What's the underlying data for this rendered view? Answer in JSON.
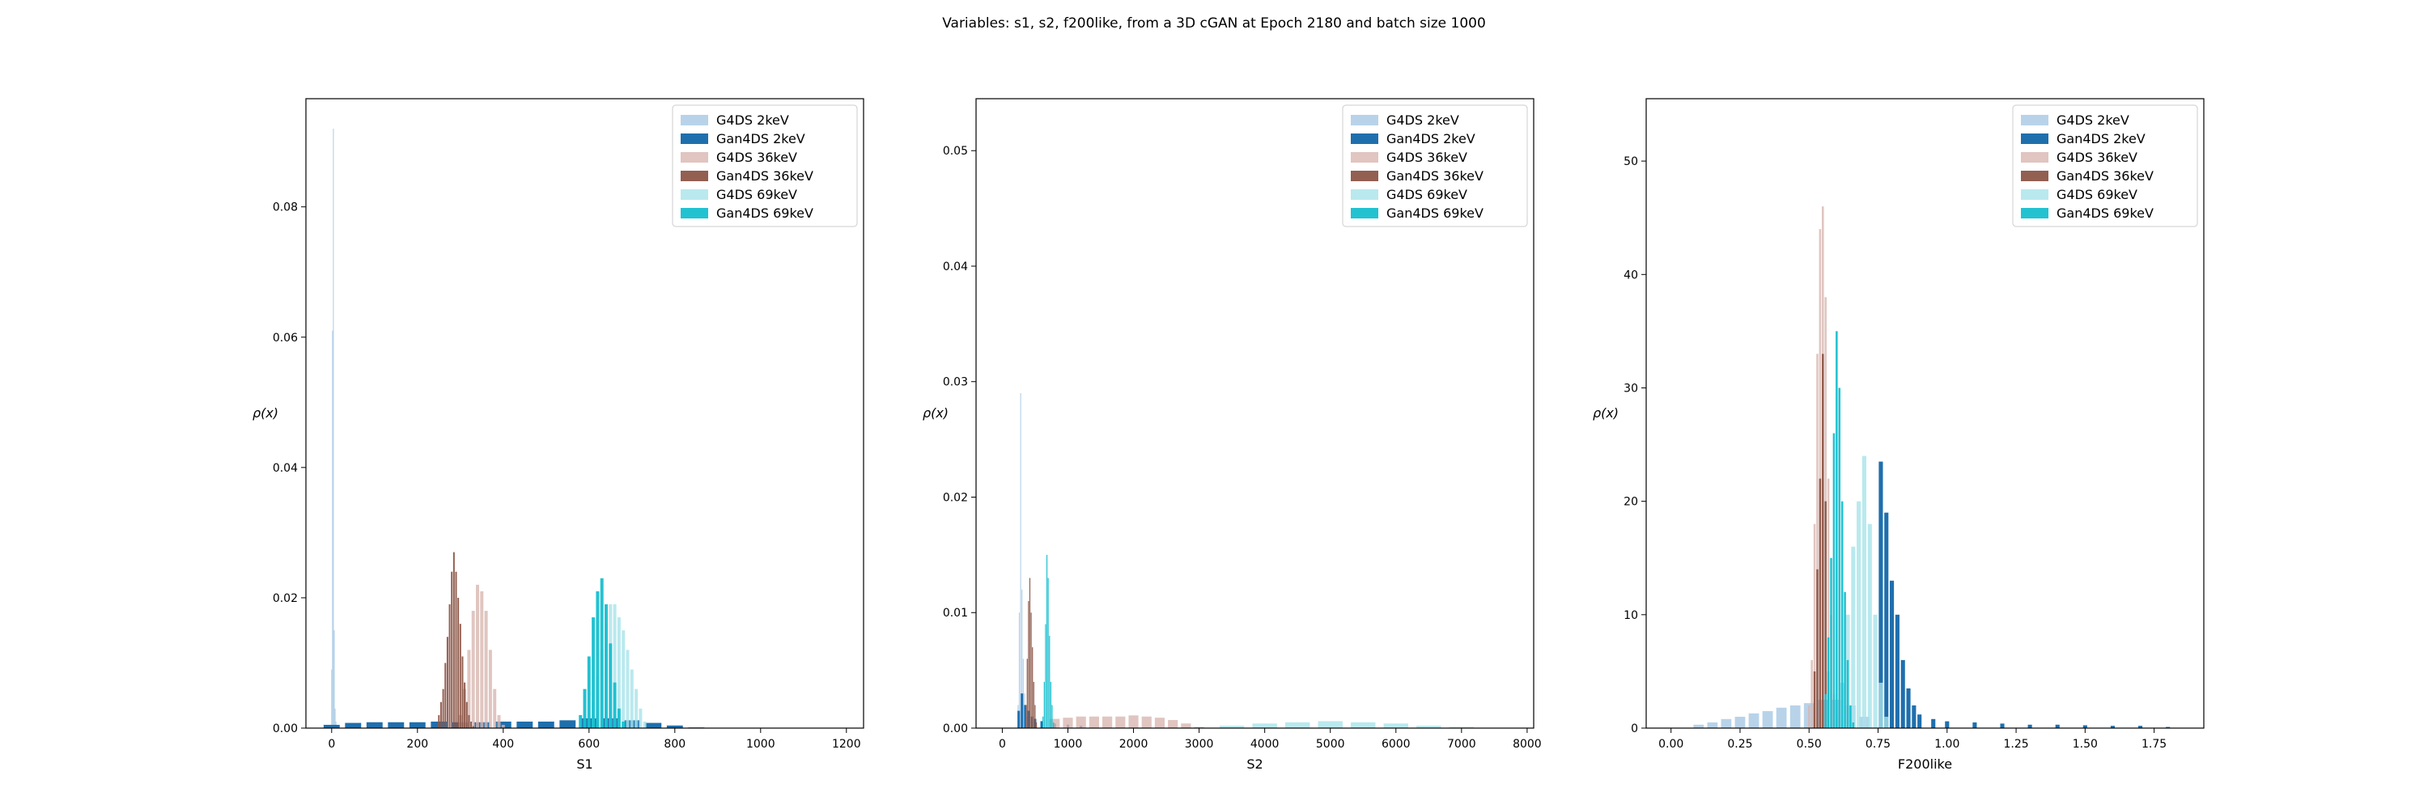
{
  "figure": {
    "title": "Variables: s1, s2, f200like, from a 3D cGAN at Epoch 2180 and batch size 1000"
  },
  "legend_entries": [
    "G4DS 2keV",
    "Gan4DS 2keV",
    "G4DS 36keV",
    "Gan4DS 36keV",
    "G4DS 69keV",
    "Gan4DS 69keV"
  ],
  "colors": {
    "g4ds_2kev": "#a6c8e3",
    "gan_2kev": "#1f6fad",
    "g4ds_36kev": "#d8b7b0",
    "gan_36kev": "#8c5648",
    "g4ds_69kev": "#a7e3ea",
    "gan_69kev": "#17bfcf"
  },
  "chart_data": [
    {
      "type": "histogram",
      "xlabel": "S1",
      "ylabel": "ρ(x)",
      "xlim": [
        -60,
        1240
      ],
      "ylim": [
        0,
        0.0966
      ],
      "xticks": [
        0,
        200,
        400,
        600,
        800,
        1000,
        1200
      ],
      "xtick_labels": [
        "0",
        "200",
        "400",
        "600",
        "800",
        "1000",
        "1200"
      ],
      "yticks": [
        0,
        0.02,
        0.04,
        0.06,
        0.08
      ],
      "ytick_labels": [
        "0.00",
        "0.02",
        "0.04",
        "0.06",
        "0.08"
      ],
      "legend_position": "top-right",
      "series": [
        {
          "name": "G4DS 2keV",
          "color": "#a6c8e3",
          "opacity": 0.8,
          "x": [
            0,
            2,
            4,
            6,
            8,
            10,
            12,
            14,
            16
          ],
          "y": [
            0.009,
            0.061,
            0.092,
            0.015,
            0.003,
            0.001,
            0.0005,
            0,
            0
          ]
        },
        {
          "name": "Gan4DS 2keV",
          "color": "#1f6fad",
          "opacity": 1,
          "x": [
            0,
            50,
            100,
            150,
            200,
            250,
            300,
            350,
            400,
            450,
            500,
            550,
            600,
            650,
            700,
            750,
            800,
            850
          ],
          "y": [
            0.0005,
            0.0008,
            0.0009,
            0.0009,
            0.0009,
            0.001,
            0.0009,
            0.0009,
            0.001,
            0.001,
            0.001,
            0.0012,
            0.0015,
            0.0015,
            0.0012,
            0.0008,
            0.0004,
            0.0001
          ]
        },
        {
          "name": "G4DS 36keV",
          "color": "#d8b7b0",
          "opacity": 0.8,
          "x": [
            300,
            310,
            320,
            330,
            340,
            350,
            360,
            370,
            380,
            390,
            400
          ],
          "y": [
            0.002,
            0.006,
            0.012,
            0.018,
            0.022,
            0.021,
            0.018,
            0.012,
            0.006,
            0.002,
            0.0005
          ]
        },
        {
          "name": "Gan4DS 36keV",
          "color": "#8c5648",
          "opacity": 0.95,
          "x": [
            250,
            255,
            260,
            265,
            270,
            275,
            280,
            285,
            290,
            295,
            300,
            305,
            310,
            315,
            320,
            325,
            330
          ],
          "y": [
            0.002,
            0.004,
            0.006,
            0.01,
            0.014,
            0.019,
            0.024,
            0.027,
            0.024,
            0.02,
            0.016,
            0.011,
            0.007,
            0.004,
            0.002,
            0.001,
            0.0003
          ]
        },
        {
          "name": "G4DS 69keV",
          "color": "#a7e3ea",
          "opacity": 0.8,
          "x": [
            610,
            620,
            630,
            640,
            650,
            660,
            670,
            680,
            690,
            700,
            710,
            720,
            730
          ],
          "y": [
            0.004,
            0.008,
            0.012,
            0.016,
            0.019,
            0.019,
            0.017,
            0.015,
            0.012,
            0.009,
            0.006,
            0.003,
            0.001
          ]
        },
        {
          "name": "Gan4DS 69keV",
          "color": "#17bfcf",
          "opacity": 0.95,
          "x": [
            580,
            590,
            600,
            610,
            620,
            630,
            640,
            650,
            660,
            670,
            680
          ],
          "y": [
            0.002,
            0.006,
            0.011,
            0.017,
            0.021,
            0.023,
            0.019,
            0.013,
            0.007,
            0.003,
            0.001
          ]
        }
      ]
    },
    {
      "type": "histogram",
      "xlabel": "S2",
      "ylabel": "ρ(x)",
      "xlim": [
        -400,
        8100
      ],
      "ylim": [
        0,
        0.0545
      ],
      "xticks": [
        0,
        1000,
        2000,
        3000,
        4000,
        5000,
        6000,
        7000,
        8000
      ],
      "xtick_labels": [
        "0",
        "1000",
        "2000",
        "3000",
        "4000",
        "5000",
        "6000",
        "7000",
        "8000"
      ],
      "yticks": [
        0,
        0.01,
        0.02,
        0.03,
        0.04,
        0.05
      ],
      "ytick_labels": [
        "0.00",
        "0.01",
        "0.02",
        "0.03",
        "0.04",
        "0.05"
      ],
      "legend_position": "top-right",
      "series": [
        {
          "name": "G4DS 2keV",
          "color": "#a6c8e3",
          "opacity": 0.8,
          "x": [
            240,
            260,
            280,
            300,
            320,
            340,
            360,
            380,
            400
          ],
          "y": [
            0.002,
            0.01,
            0.029,
            0.012,
            0.006,
            0.003,
            0.002,
            0.001,
            0.0005
          ]
        },
        {
          "name": "Gan4DS 2keV",
          "color": "#1f6fad",
          "opacity": 1,
          "x": [
            250,
            300,
            350,
            400,
            450,
            500,
            600,
            800,
            1000,
            1200
          ],
          "y": [
            0.0015,
            0.003,
            0.002,
            0.0015,
            0.001,
            0.0008,
            0.0006,
            0.0004,
            0.0003,
            0.0002
          ]
        },
        {
          "name": "G4DS 36keV",
          "color": "#d8b7b0",
          "opacity": 0.8,
          "x": [
            800,
            1000,
            1200,
            1400,
            1600,
            1800,
            2000,
            2200,
            2400,
            2600,
            2800,
            3000
          ],
          "y": [
            0.0008,
            0.0009,
            0.001,
            0.001,
            0.001,
            0.001,
            0.0011,
            0.001,
            0.0009,
            0.0007,
            0.0004,
            0.0001
          ]
        },
        {
          "name": "Gan4DS 36keV",
          "color": "#8c5648",
          "opacity": 0.95,
          "x": [
            360,
            380,
            400,
            420,
            440,
            460,
            480,
            500,
            520
          ],
          "y": [
            0.002,
            0.006,
            0.011,
            0.013,
            0.01,
            0.007,
            0.004,
            0.002,
            0.0005
          ]
        },
        {
          "name": "G4DS 69keV",
          "color": "#a7e3ea",
          "opacity": 0.8,
          "x": [
            3500,
            4000,
            4500,
            5000,
            5500,
            6000,
            6500,
            7000
          ],
          "y": [
            0.0002,
            0.0004,
            0.0005,
            0.0006,
            0.0005,
            0.0004,
            0.0002,
            0.0001
          ]
        },
        {
          "name": "Gan4DS 69keV",
          "color": "#17bfcf",
          "opacity": 0.95,
          "x": [
            620,
            640,
            660,
            680,
            700,
            720,
            740,
            760,
            780
          ],
          "y": [
            0.001,
            0.004,
            0.009,
            0.015,
            0.013,
            0.008,
            0.004,
            0.002,
            0.0005
          ]
        }
      ]
    },
    {
      "type": "histogram",
      "xlabel": "F200like",
      "ylabel": "ρ(x)",
      "xlim": [
        -0.09,
        1.93
      ],
      "ylim": [
        0,
        55.5
      ],
      "xticks": [
        0,
        0.25,
        0.5,
        0.75,
        1.0,
        1.25,
        1.5,
        1.75
      ],
      "xtick_labels": [
        "0.00",
        "0.25",
        "0.50",
        "0.75",
        "1.00",
        "1.25",
        "1.50",
        "1.75"
      ],
      "yticks": [
        0,
        10,
        20,
        30,
        40,
        50
      ],
      "ytick_labels": [
        "0",
        "10",
        "20",
        "30",
        "40",
        "50"
      ],
      "legend_position": "top-right",
      "series": [
        {
          "name": "G4DS 2keV",
          "color": "#a6c8e3",
          "opacity": 0.8,
          "x": [
            0.1,
            0.15,
            0.2,
            0.25,
            0.3,
            0.35,
            0.4,
            0.45,
            0.5,
            0.55,
            0.6,
            0.65,
            0.7
          ],
          "y": [
            0.3,
            0.5,
            0.8,
            1.0,
            1.3,
            1.5,
            1.8,
            2.0,
            2.2,
            2.5,
            2.5,
            2.0,
            1.0
          ]
        },
        {
          "name": "Gan4DS 2keV",
          "color": "#1f6fad",
          "opacity": 1,
          "x": [
            0.76,
            0.78,
            0.8,
            0.82,
            0.84,
            0.86,
            0.88,
            0.9,
            0.95,
            1.0,
            1.1,
            1.2,
            1.3,
            1.4,
            1.5,
            1.6,
            1.7,
            1.8
          ],
          "y": [
            23.5,
            19.0,
            13.0,
            10.0,
            6.0,
            3.5,
            2.0,
            1.2,
            0.8,
            0.6,
            0.5,
            0.4,
            0.3,
            0.3,
            0.25,
            0.2,
            0.2,
            0.1
          ]
        },
        {
          "name": "G4DS 36keV",
          "color": "#d8b7b0",
          "opacity": 0.8,
          "x": [
            0.5,
            0.51,
            0.52,
            0.53,
            0.54,
            0.55,
            0.56,
            0.57,
            0.58,
            0.59,
            0.6
          ],
          "y": [
            2.0,
            6.0,
            18.0,
            33.0,
            44.0,
            46.0,
            38.0,
            22.0,
            10.0,
            3.0,
            1.0
          ]
        },
        {
          "name": "Gan4DS 36keV",
          "color": "#8c5648",
          "opacity": 0.95,
          "x": [
            0.52,
            0.53,
            0.54,
            0.55,
            0.56,
            0.57
          ],
          "y": [
            5.0,
            14.0,
            22.0,
            33.0,
            20.0,
            5.0
          ]
        },
        {
          "name": "G4DS 69keV",
          "color": "#a7e3ea",
          "opacity": 0.8,
          "x": [
            0.62,
            0.64,
            0.66,
            0.68,
            0.7,
            0.72,
            0.74,
            0.76,
            0.78
          ],
          "y": [
            4.0,
            10.0,
            16.0,
            20.0,
            24.0,
            18.0,
            10.0,
            4.0,
            1.0
          ]
        },
        {
          "name": "Gan4DS 69keV",
          "color": "#17bfcf",
          "opacity": 0.95,
          "x": [
            0.56,
            0.57,
            0.58,
            0.59,
            0.6,
            0.61,
            0.62,
            0.63,
            0.64,
            0.65,
            0.66
          ],
          "y": [
            3.0,
            8.0,
            15.0,
            26.0,
            35.0,
            30.0,
            20.0,
            12.0,
            6.0,
            2.0,
            0.5
          ]
        }
      ]
    }
  ]
}
